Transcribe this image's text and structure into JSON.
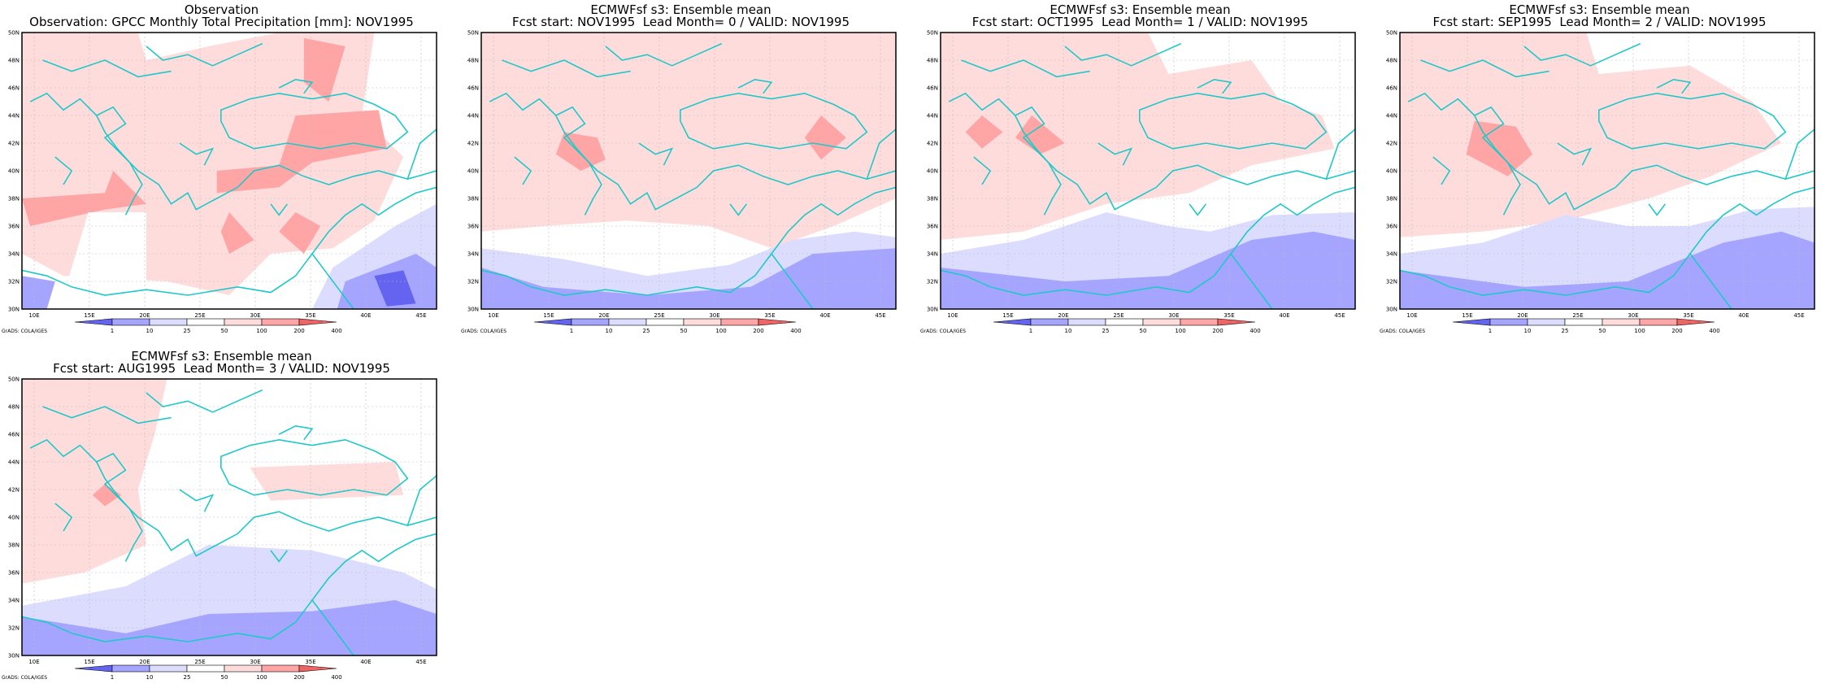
{
  "panels": [
    {
      "id": "obs",
      "title_line1": "Observation",
      "title_line2": "Observation: GPCC Monthly Total Precipitation [mm]: NOV1995",
      "variant": 0
    },
    {
      "id": "lead0",
      "title_line1": "ECMWFsf s3: Ensemble mean",
      "title_line2": "Fcst start: NOV1995  Lead Month= 0 / VALID: NOV1995",
      "variant": 1
    },
    {
      "id": "lead1",
      "title_line1": "ECMWFsf s3: Ensemble mean",
      "title_line2": "Fcst start: OCT1995  Lead Month= 1 / VALID: NOV1995",
      "variant": 2
    },
    {
      "id": "lead2",
      "title_line1": "ECMWFsf s3: Ensemble mean",
      "title_line2": "Fcst start: SEP1995  Lead Month= 2 / VALID: NOV1995",
      "variant": 3
    },
    {
      "id": "lead3",
      "title_line1": "ECMWFsf s3: Ensemble mean",
      "title_line2": "Fcst start: AUG1995  Lead Month= 3 / VALID: NOV1995",
      "variant": 4
    }
  ],
  "axis": {
    "lat_labels": [
      "30N",
      "32N",
      "34N",
      "36N",
      "38N",
      "40N",
      "42N",
      "44N",
      "46N",
      "48N",
      "50N"
    ],
    "lon_labels": [
      "10E",
      "15E",
      "20E",
      "25E",
      "30E",
      "35E",
      "40E",
      "45E"
    ]
  },
  "colorbar": {
    "labels": [
      "1",
      "10",
      "25",
      "50",
      "100",
      "200",
      "400"
    ],
    "colors": [
      "#6464f0",
      "#a5a5ff",
      "#dcdcff",
      "#ffffff",
      "#ffdcdc",
      "#ffa5a5",
      "#f06464"
    ]
  },
  "credit": "GrADS: COLA/IGES",
  "colors": {
    "coast": "#20c8c8",
    "frame": "#000000"
  }
}
